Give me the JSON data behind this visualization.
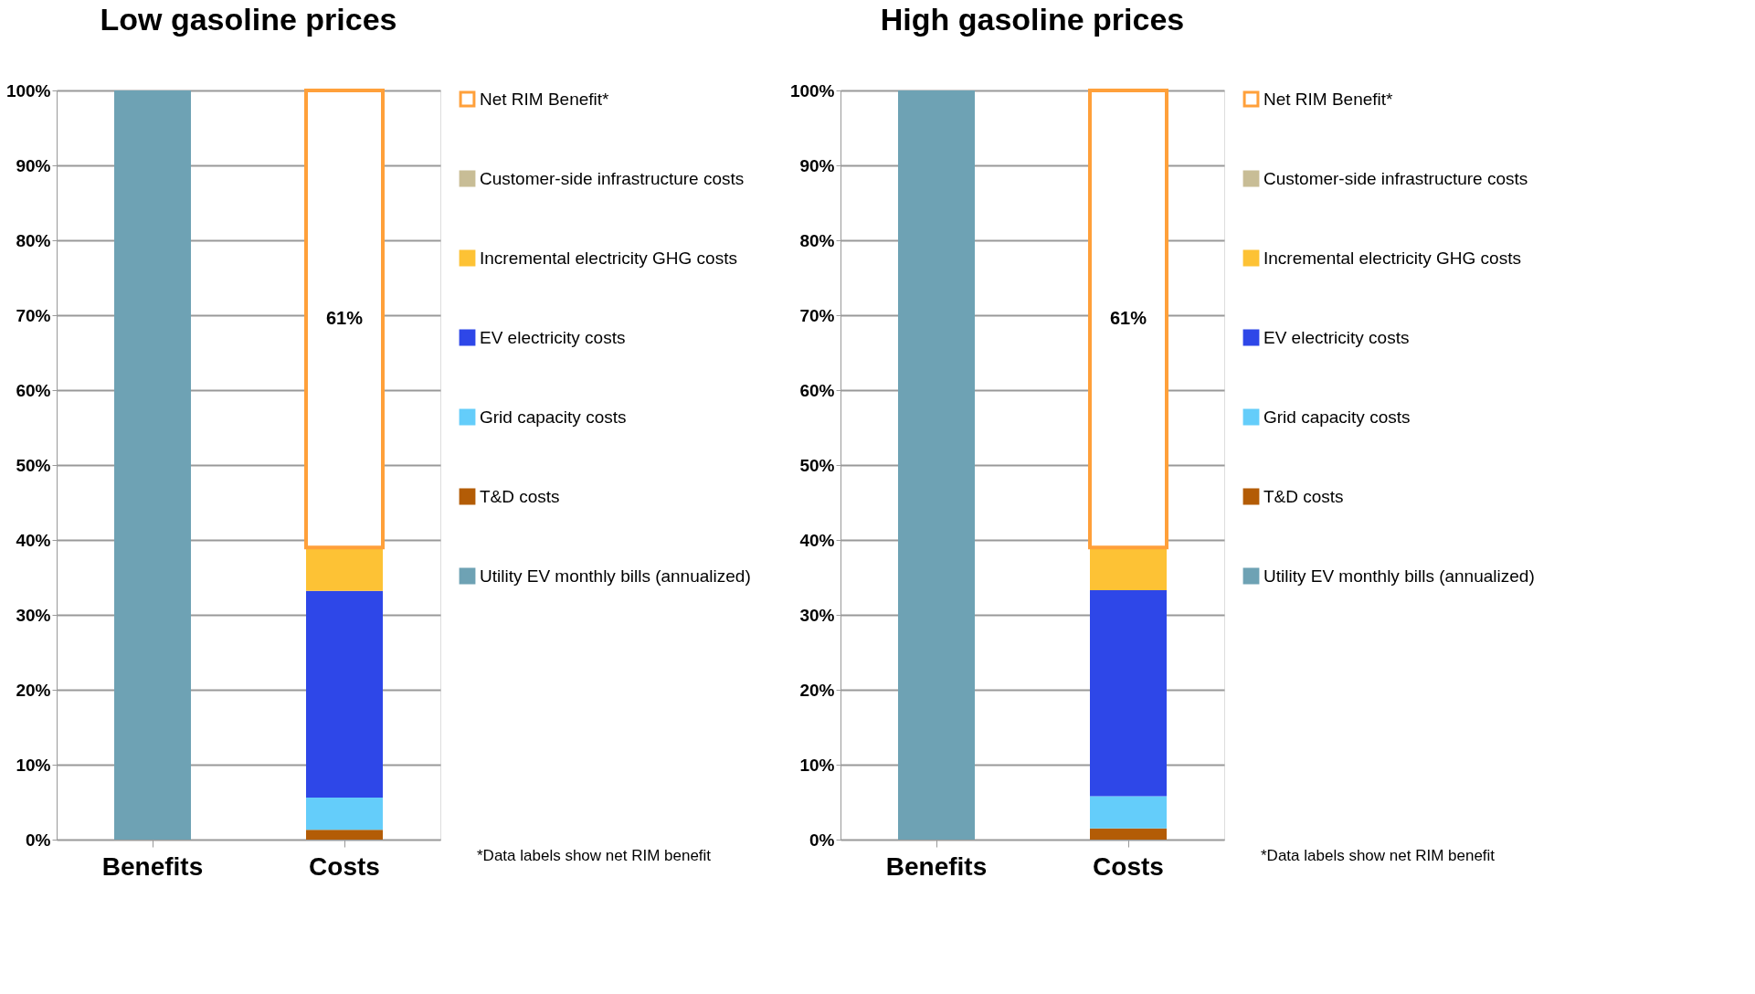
{
  "chart_data": [
    {
      "type": "bar",
      "stacked": true,
      "title": "Low gasoline prices",
      "categories": [
        "Benefits",
        "Costs"
      ],
      "series": [
        {
          "name": "Utility EV monthly bills (annualized)",
          "color": "#6ea2b4",
          "values": [
            100,
            null
          ]
        },
        {
          "name": "T&D costs",
          "color": "#b35c06",
          "values": [
            null,
            1.3
          ]
        },
        {
          "name": "Grid capacity costs",
          "color": "#64cdfa",
          "values": [
            null,
            4.3
          ]
        },
        {
          "name": "EV electricity costs",
          "color": "#2e47e8",
          "values": [
            null,
            27.6
          ]
        },
        {
          "name": "Incremental electricity GHG costs",
          "color": "#fdc235",
          "values": [
            null,
            5.8
          ]
        },
        {
          "name": "Customer-side infrastructure costs",
          "color": "#c8bd96",
          "values": [
            null,
            0
          ]
        },
        {
          "name": "Net RIM Benefit*",
          "color": "#ffa03a",
          "values": [
            null,
            61
          ],
          "value_labels": [
            null,
            "61%"
          ]
        }
      ],
      "ylim": [
        0,
        100
      ],
      "yticks": [
        {
          "value": 0,
          "label": "0%"
        },
        {
          "value": 10,
          "label": "10%"
        },
        {
          "value": 20,
          "label": "20%"
        },
        {
          "value": 30,
          "label": "30%"
        },
        {
          "value": 40,
          "label": "40%"
        },
        {
          "value": 50,
          "label": "50%"
        },
        {
          "value": 60,
          "label": "60%"
        },
        {
          "value": 70,
          "label": "70%"
        },
        {
          "value": 80,
          "label": "80%"
        },
        {
          "value": 90,
          "label": "90%"
        },
        {
          "value": 100,
          "label": "100%"
        }
      ],
      "grid": "y",
      "legend": "right",
      "annotations": [
        "*Data labels show net RIM benefit"
      ]
    },
    {
      "type": "bar",
      "stacked": true,
      "title": "High gasoline prices",
      "categories": [
        "Benefits",
        "Costs"
      ],
      "series": [
        {
          "name": "Utility EV monthly bills (annualized)",
          "color": "#6ea2b4",
          "values": [
            100,
            null
          ]
        },
        {
          "name": "T&D costs",
          "color": "#b35c06",
          "values": [
            null,
            1.5
          ]
        },
        {
          "name": "Grid capacity costs",
          "color": "#64cdfa",
          "values": [
            null,
            4.3
          ]
        },
        {
          "name": "EV electricity costs",
          "color": "#2e47e8",
          "values": [
            null,
            27.5
          ]
        },
        {
          "name": "Incremental electricity GHG costs",
          "color": "#fdc235",
          "values": [
            null,
            5.7
          ]
        },
        {
          "name": "Customer-side infrastructure costs",
          "color": "#c8bd96",
          "values": [
            null,
            0
          ]
        },
        {
          "name": "Net RIM Benefit*",
          "color": "#ffa03a",
          "values": [
            null,
            61
          ],
          "value_labels": [
            null,
            "61%"
          ]
        }
      ],
      "ylim": [
        0,
        100
      ],
      "yticks": [
        {
          "value": 0,
          "label": "0%"
        },
        {
          "value": 10,
          "label": "10%"
        },
        {
          "value": 20,
          "label": "20%"
        },
        {
          "value": 30,
          "label": "30%"
        },
        {
          "value": 40,
          "label": "40%"
        },
        {
          "value": 50,
          "label": "50%"
        },
        {
          "value": 60,
          "label": "60%"
        },
        {
          "value": 70,
          "label": "70%"
        },
        {
          "value": 80,
          "label": "80%"
        },
        {
          "value": 90,
          "label": "90%"
        },
        {
          "value": 100,
          "label": "100%"
        }
      ],
      "grid": "y",
      "legend": "right",
      "annotations": [
        "*Data labels show net RIM benefit"
      ]
    }
  ]
}
